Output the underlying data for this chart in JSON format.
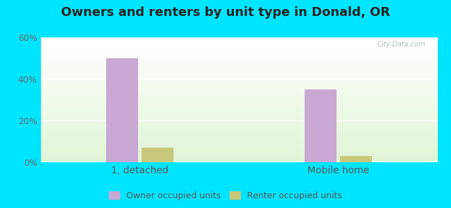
{
  "title": "Owners and renters by unit type in Donald, OR",
  "categories": [
    "1, detached",
    "Mobile home"
  ],
  "owner_values": [
    50.0,
    35.0
  ],
  "renter_values": [
    7.0,
    3.0
  ],
  "owner_color": "#c9a8d4",
  "renter_color": "#c8c87a",
  "ylim": [
    0,
    60
  ],
  "yticks": [
    0,
    20,
    40,
    60
  ],
  "ytick_labels": [
    "0%",
    "20%",
    "40%",
    "60%"
  ],
  "bar_width": 0.08,
  "outer_bg": "#00e5ff",
  "legend_owner": "Owner occupied units",
  "legend_renter": "Renter occupied units",
  "watermark": "City-Data.com",
  "title_fontsize": 13,
  "axis_fontsize": 9,
  "legend_fontsize": 9,
  "group_centers": [
    0.25,
    0.75
  ]
}
